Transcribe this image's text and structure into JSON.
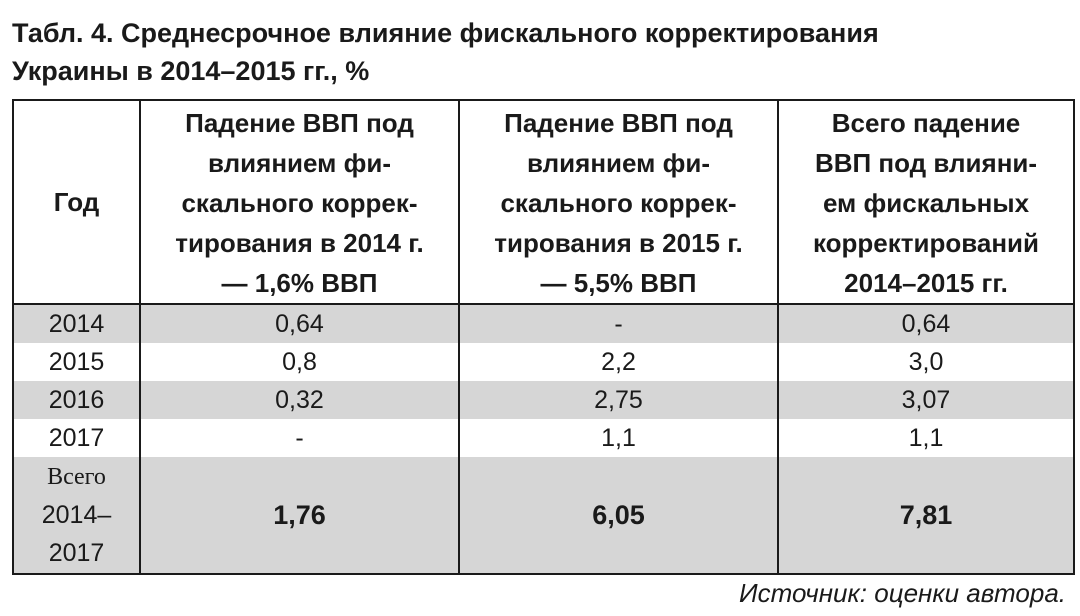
{
  "title": {
    "line1": "Табл. 4. Среднесрочное влияние фискального корректирования",
    "line2": "Украины в 2014–2015 гг., %"
  },
  "table": {
    "headers": [
      {
        "lines": [
          "Год"
        ]
      },
      {
        "lines": [
          "Падение ВВП под",
          "влиянием фи-",
          "скального коррек-",
          "тирования в 2014 г.",
          "— 1,6% ВВП"
        ]
      },
      {
        "lines": [
          "Падение ВВП под",
          "влиянием фи-",
          "скального коррек-",
          "тирования в 2015 г.",
          "— 5,5% ВВП"
        ]
      },
      {
        "lines": [
          "Всего падение",
          "ВВП под влияни-",
          "ем фискальных",
          "корректирований",
          "2014–2015 гг."
        ]
      }
    ],
    "rows": [
      {
        "year": "2014",
        "c1": "0,64",
        "c2": "-",
        "c3": "0,64"
      },
      {
        "year": "2015",
        "c1": "0,8",
        "c2": "2,2",
        "c3": "3,0"
      },
      {
        "year": "2016",
        "c1": "0,32",
        "c2": "2,75",
        "c3": "3,07"
      },
      {
        "year": "2017",
        "c1": "-",
        "c2": "1,1",
        "c3": "1,1"
      }
    ],
    "total": {
      "label_lines": [
        "Всего",
        "2014–",
        "2017"
      ],
      "c1": "1,76",
      "c2": "6,05",
      "c3": "7,81"
    }
  },
  "source": "Источник: оценки автора.",
  "colors": {
    "shade": "#d6d6d6",
    "border": "#1a1a1a"
  }
}
